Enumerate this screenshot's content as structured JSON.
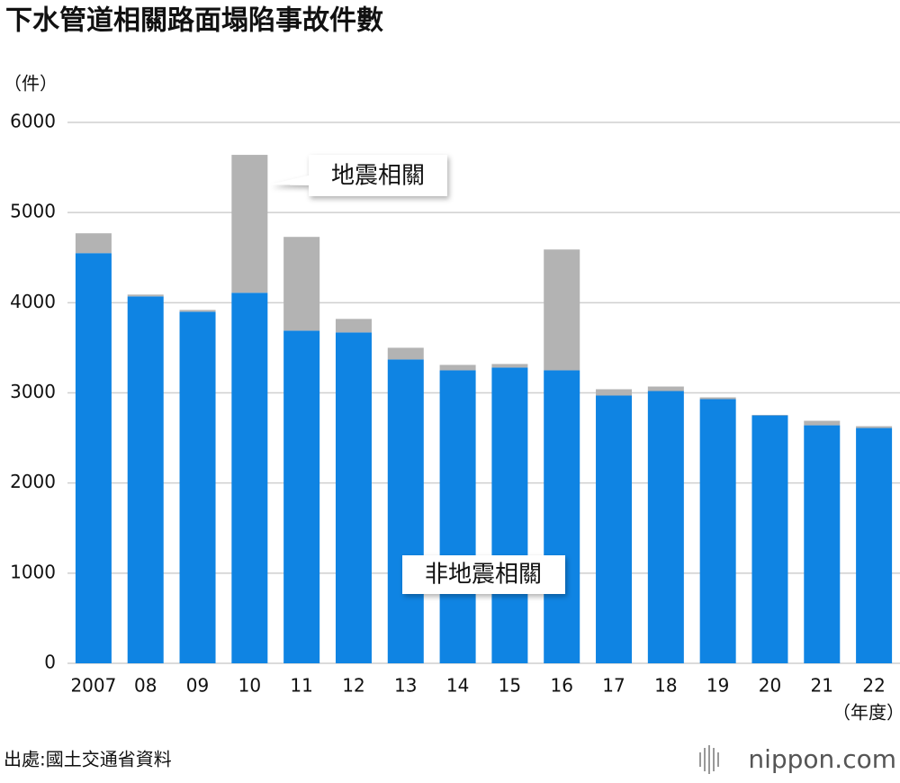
{
  "chart_data": {
    "type": "bar",
    "stacked": true,
    "title": "下水管道相關路面塌陷事故件數",
    "y_label": "（件）",
    "x_label": "（年度）",
    "source": "出處:國土交通省資料",
    "brand": "nippon.com",
    "categories": [
      "2007",
      "08",
      "09",
      "10",
      "11",
      "12",
      "13",
      "14",
      "15",
      "16",
      "17",
      "18",
      "19",
      "20",
      "21",
      "22"
    ],
    "series": [
      {
        "name": "非地震相關",
        "color": "#0f84e3",
        "values": [
          4550,
          4070,
          3900,
          4110,
          3690,
          3670,
          3370,
          3250,
          3280,
          3250,
          2970,
          3020,
          2930,
          2750,
          2640,
          2610
        ]
      },
      {
        "name": "地震相關",
        "color": "#b3b3b3",
        "values": [
          220,
          20,
          20,
          1530,
          1040,
          150,
          130,
          60,
          40,
          1340,
          70,
          50,
          20,
          5,
          50,
          20
        ]
      }
    ],
    "ylim": [
      0,
      6000
    ],
    "yticks": [
      0,
      1000,
      2000,
      3000,
      4000,
      5000,
      6000
    ],
    "grid": true
  }
}
